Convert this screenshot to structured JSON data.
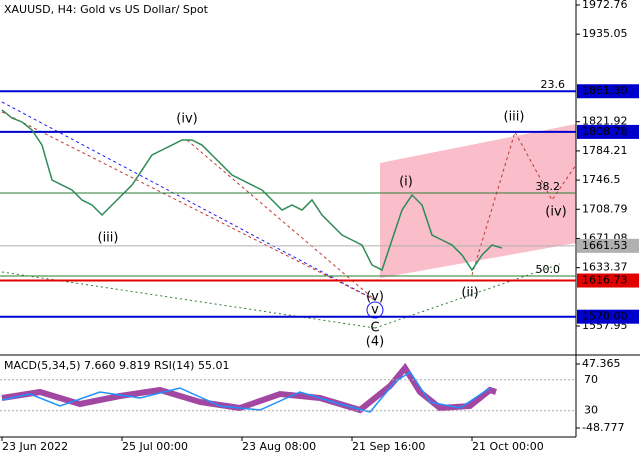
{
  "chart_data": {
    "type": "line",
    "title": "XAUUSD, H4:  Gold vs US Dollar/ Spot",
    "categories": [
      "23 Jun 2022",
      null,
      null,
      null,
      null,
      null,
      null,
      null,
      null,
      null,
      null,
      null,
      "25 Jul 00:00",
      null,
      null,
      null,
      null,
      null,
      null,
      null,
      null,
      null,
      null,
      null,
      "23 Aug 08:00",
      null,
      null,
      null,
      null,
      null,
      null,
      null,
      null,
      null,
      null,
      "21 Sep 16:00",
      null,
      null,
      null,
      null,
      null,
      null,
      null,
      null,
      null,
      null,
      null,
      "21 Oct 00:00",
      null,
      null,
      null
    ],
    "values": [
      1837.1,
      1826.7,
      1821.6,
      1811.2,
      1791.8,
      1746.6,
      1740.1,
      1733.7,
      1720.8,
      1714.3,
      1701.4,
      1714.3,
      1727.2,
      1740.1,
      1759.5,
      1778.9,
      1785.4,
      1791.8,
      1798.3,
      1798.3,
      1791.8,
      1778.9,
      1766.0,
      1753.1,
      1746.6,
      1740.1,
      1733.7,
      1720.8,
      1707.8,
      1714.3,
      1707.8,
      1720.8,
      1701.4,
      1688.5,
      1675.5,
      1669.1,
      1662.6,
      1636.8,
      1630.3,
      1669.1,
      1707.8,
      1727.2,
      1714.3,
      1675.5,
      1669.1,
      1662.6,
      1649.7,
      1630.3,
      1649.7,
      1662.6,
      1658.7
    ],
    "color": "#2e8b57",
    "ylim": [
      1520.5,
      1979.2
    ],
    "yticks": [
      1972.76,
      1935.05,
      1821.92,
      1784.21,
      1746.5,
      1708.79,
      1671.08,
      1633.37,
      1557.95
    ],
    "levels": [
      {
        "value": 1861.3,
        "label": "1861.30",
        "color": "#0000cc"
      },
      {
        "value": 1808.78,
        "label": "1808.78",
        "color": "#0000cc"
      },
      {
        "value": 1661.53,
        "label": "1661.53",
        "color": "#b0b0b0"
      },
      {
        "value": 1616.73,
        "label": "1616.73",
        "color": "#e00000"
      },
      {
        "value": 1570,
        "label": "1570.00",
        "color": "#0000cc"
      }
    ],
    "fib_levels": [
      {
        "value": 1861.3,
        "label": "23.6"
      },
      {
        "value": 1729.8,
        "label": "38.2"
      },
      {
        "value": 1622.6,
        "label": "50.0"
      }
    ],
    "waves": [
      {
        "text": "(iii)",
        "color": "#c0392b"
      },
      {
        "text": "(iv)",
        "color": "#c0392b"
      },
      {
        "text": "(v)",
        "color": "#c0392b"
      },
      {
        "text": "v",
        "color": "#1a1aff"
      },
      {
        "text": "C",
        "color": "#c0392b"
      },
      {
        "text": "(4)",
        "color": "#2e7d32"
      },
      {
        "text": "(i)",
        "color": "#c0392b"
      },
      {
        "text": "(ii)",
        "color": "#c0392b"
      },
      {
        "text": "(iii)",
        "color": "#c0392b"
      },
      {
        "text": "(iv)",
        "color": "#c0392b"
      }
    ],
    "indicator": {
      "label": "MACD(5,34,5) 7.660 9.819 RSI(14) 55.01",
      "ylim": [
        -62.3,
        56.4
      ],
      "yticks": [
        47.365,
        -48.777
      ],
      "rsi_ylim": [
        -3.9,
        98.1
      ],
      "rsi_yticks": [
        70,
        30
      ]
    }
  }
}
